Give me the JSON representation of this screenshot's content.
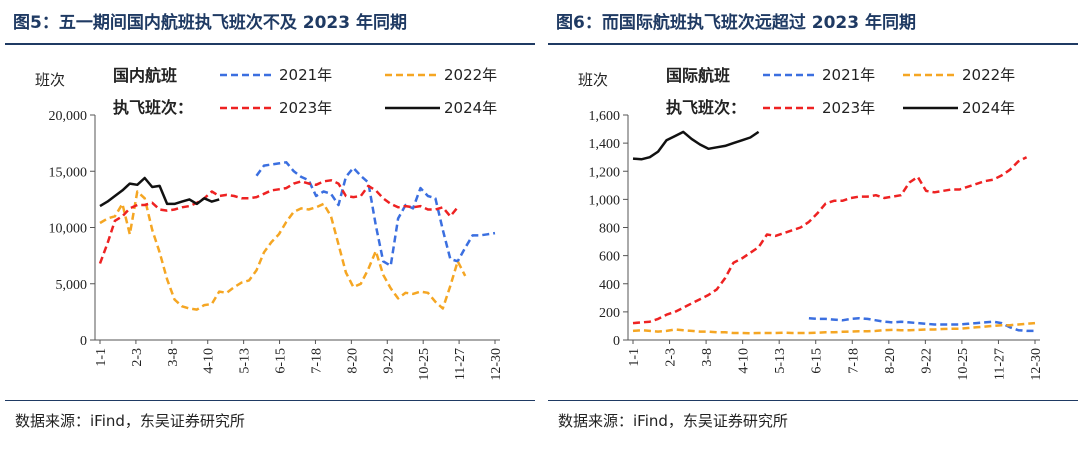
{
  "source_text": "数据来源：iFind，东吴证券研究所",
  "chart_data": [
    {
      "type": "line",
      "title": "图5：五一期间国内航班执飞班次不及 2023 年同期",
      "ylabel": "班次",
      "legend_title": "国内航班执飞班次：",
      "ylim": [
        0,
        20000
      ],
      "yticks": [
        0,
        5000,
        10000,
        15000,
        20000
      ],
      "ytick_labels": [
        "0",
        "5,000",
        "10,000",
        "15,000",
        "20,000"
      ],
      "xticks": [
        "1-1",
        "2-3",
        "3-8",
        "4-10",
        "5-13",
        "6-15",
        "7-18",
        "8-20",
        "9-22",
        "10-25",
        "11-27",
        "12-30"
      ],
      "legend_position": "top",
      "series": [
        {
          "name": "2021年",
          "color": "#3b6fe0",
          "dash": "dashed",
          "values": [
            null,
            null,
            null,
            null,
            null,
            null,
            null,
            null,
            null,
            null,
            null,
            null,
            null,
            null,
            null,
            null,
            null,
            null,
            null,
            null,
            null,
            14600,
            15500,
            15600,
            15700,
            15800,
            15000,
            14500,
            14200,
            12800,
            13200,
            13000,
            12000,
            14500,
            15300,
            14600,
            14000,
            10200,
            7000,
            6600,
            10800,
            12000,
            11700,
            13500,
            12800,
            12600,
            9800,
            7200,
            7000,
            8200,
            9300,
            9300,
            9400,
            9500
          ]
        },
        {
          "name": "2022年",
          "color": "#f5a623",
          "dash": "dashed",
          "values": [
            10400,
            10800,
            11000,
            12100,
            9400,
            13200,
            12600,
            9800,
            7800,
            5400,
            3600,
            3000,
            2800,
            2700,
            3100,
            3200,
            4300,
            4200,
            4700,
            5100,
            5300,
            6200,
            7800,
            8700,
            9400,
            10500,
            11400,
            11700,
            11600,
            11800,
            12100,
            11000,
            8500,
            6000,
            4700,
            5000,
            6300,
            7900,
            5800,
            4600,
            3700,
            4200,
            4100,
            4300,
            4200,
            3400,
            2800,
            4800,
            7000,
            5700
          ]
        },
        {
          "name": "2023年",
          "color": "#ee2222",
          "dash": "dashed",
          "values": [
            6800,
            8600,
            10600,
            11000,
            11700,
            12000,
            12000,
            12200,
            11600,
            11500,
            11600,
            11800,
            11900,
            12200,
            12600,
            13200,
            12800,
            12900,
            12800,
            12600,
            12600,
            12700,
            13000,
            13300,
            13400,
            13500,
            13900,
            14100,
            13900,
            13800,
            14100,
            14200,
            13900,
            12800,
            12700,
            12800,
            13700,
            13300,
            12600,
            12100,
            11800,
            11900,
            11800,
            11900,
            11600,
            11600,
            11800,
            11000,
            11800
          ]
        },
        {
          "name": "2024年",
          "color": "#111111",
          "dash": "solid",
          "values": [
            11900,
            12300,
            12800,
            13300,
            13900,
            13800,
            14400,
            13600,
            13700,
            12100,
            12100,
            12300,
            12500,
            12100,
            12600,
            12300,
            12500
          ]
        }
      ]
    },
    {
      "type": "line",
      "title": "图6：而国际航班执飞班次远超过 2023 年同期",
      "ylabel": "班次",
      "legend_title": "国际航班执飞班次：",
      "ylim": [
        0,
        1600
      ],
      "yticks": [
        0,
        200,
        400,
        600,
        800,
        1000,
        1200,
        1400,
        1600
      ],
      "ytick_labels": [
        "0",
        "200",
        "400",
        "600",
        "800",
        "1,000",
        "1,200",
        "1,400",
        "1,600"
      ],
      "xticks": [
        "1-1",
        "2-3",
        "3-8",
        "4-10",
        "5-13",
        "6-15",
        "7-18",
        "8-20",
        "9-22",
        "10-25",
        "11-27",
        "12-30"
      ],
      "legend_position": "top",
      "series": [
        {
          "name": "2021年",
          "color": "#3b6fe0",
          "dash": "dashed",
          "values": [
            null,
            null,
            null,
            null,
            null,
            null,
            null,
            null,
            null,
            null,
            null,
            null,
            null,
            null,
            null,
            null,
            null,
            null,
            null,
            null,
            null,
            155,
            150,
            150,
            145,
            140,
            150,
            155,
            150,
            140,
            130,
            125,
            130,
            125,
            120,
            115,
            110,
            110,
            110,
            110,
            115,
            120,
            125,
            130,
            120,
            90,
            70,
            65,
            65
          ]
        },
        {
          "name": "2022年",
          "color": "#f5a623",
          "dash": "dashed",
          "values": [
            65,
            70,
            65,
            60,
            65,
            75,
            70,
            65,
            60,
            60,
            55,
            55,
            50,
            50,
            48,
            50,
            50,
            50,
            52,
            50,
            50,
            50,
            52,
            55,
            55,
            58,
            60,
            62,
            62,
            65,
            70,
            72,
            70,
            70,
            72,
            75,
            75,
            78,
            80,
            80,
            85,
            90,
            95,
            100,
            105,
            105,
            110,
            115,
            120
          ]
        },
        {
          "name": "2023年",
          "color": "#ee2222",
          "dash": "dashed",
          "values": [
            120,
            125,
            130,
            150,
            180,
            200,
            230,
            260,
            290,
            320,
            360,
            440,
            550,
            580,
            620,
            660,
            750,
            740,
            760,
            780,
            800,
            840,
            900,
            970,
            990,
            990,
            1010,
            1020,
            1020,
            1030,
            1010,
            1020,
            1030,
            1120,
            1160,
            1060,
            1050,
            1060,
            1070,
            1070,
            1090,
            1110,
            1130,
            1140,
            1170,
            1210,
            1270,
            1300
          ]
        },
        {
          "name": "2024年",
          "color": "#111111",
          "dash": "solid",
          "values": [
            1290,
            1285,
            1300,
            1340,
            1420,
            1450,
            1480,
            1430,
            1390,
            1360,
            1370,
            1380,
            1400,
            1420,
            1440,
            1480
          ]
        }
      ]
    }
  ]
}
